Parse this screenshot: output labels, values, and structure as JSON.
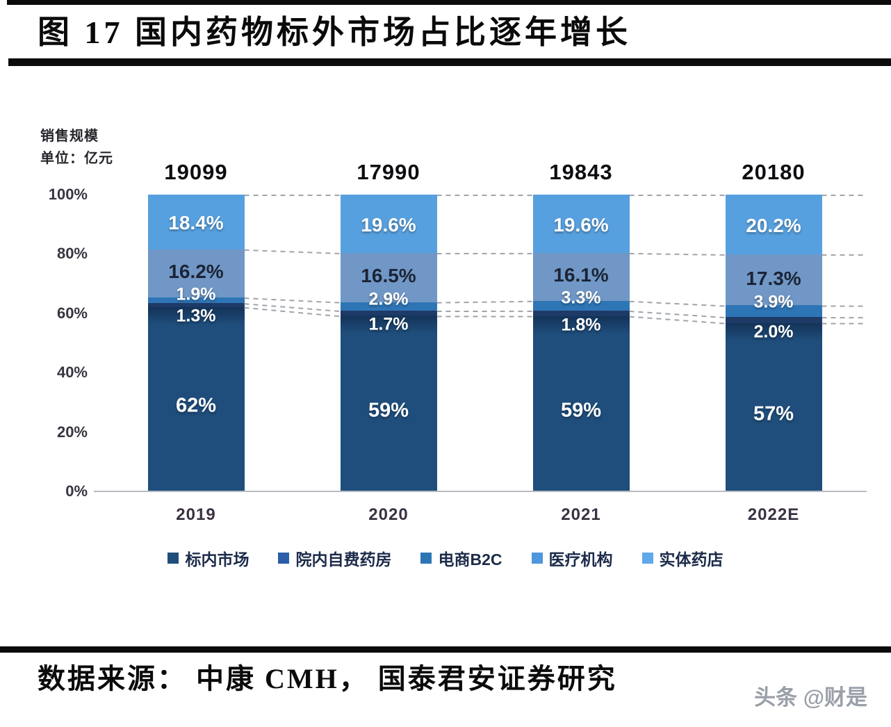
{
  "page": {
    "title": "图 17 国内药物标外市场占比逐年增长",
    "source": "数据来源： 中康 CMH， 国泰君安证券研究",
    "watermark": "头条 @财是"
  },
  "chart_data": {
    "type": "bar",
    "stacked": true,
    "title": "国内药物标外市场占比逐年增长",
    "unit_label": [
      "销售规模",
      "单位：亿元"
    ],
    "categories": [
      "2019",
      "2020",
      "2021",
      "2022E"
    ],
    "totals": [
      "19099",
      "17990",
      "19843",
      "20180"
    ],
    "y_ticks": [
      "100%",
      "80%",
      "60%",
      "40%",
      "20%",
      "0%"
    ],
    "ylim": [
      0,
      100
    ],
    "grid": false,
    "legend_position": "bottom",
    "connector_color": "#8f949c",
    "series": [
      {
        "name": "标内市场",
        "color": "#1F4E7C",
        "legend_color": "#1F4E7C",
        "label_color": "#ffffff",
        "values": [
          62,
          59,
          59,
          57
        ],
        "labels": [
          "62%",
          "59%",
          "59%",
          "57%"
        ]
      },
      {
        "name": "院内自费药房",
        "color": "#1E3A66",
        "legend_color": "#2B5DA9",
        "label_color": "#ffffff",
        "values": [
          1.3,
          1.7,
          1.8,
          2.0
        ],
        "labels": [
          "1.3%",
          "1.7%",
          "1.8%",
          "2.0%"
        ]
      },
      {
        "name": "电商B2C",
        "color": "#2E75B6",
        "legend_color": "#2E75B6",
        "label_color": "#ffffff",
        "values": [
          1.9,
          2.9,
          3.3,
          3.9
        ],
        "labels": [
          "1.9%",
          "2.9%",
          "3.3%",
          "3.9%"
        ]
      },
      {
        "name": "医疗机构",
        "color": "#7097C5",
        "legend_color": "#4E97DD",
        "label_color": "#1b2436",
        "values": [
          16.2,
          16.5,
          16.1,
          17.3
        ],
        "labels": [
          "16.2%",
          "16.5%",
          "16.1%",
          "17.3%"
        ]
      },
      {
        "name": "实体药店",
        "color": "#57A0DF",
        "legend_color": "#5FA8EA",
        "label_color": "#ffffff",
        "values": [
          18.4,
          19.6,
          19.6,
          20.2
        ],
        "labels": [
          "18.4%",
          "19.6%",
          "19.6%",
          "20.2%"
        ]
      }
    ]
  }
}
